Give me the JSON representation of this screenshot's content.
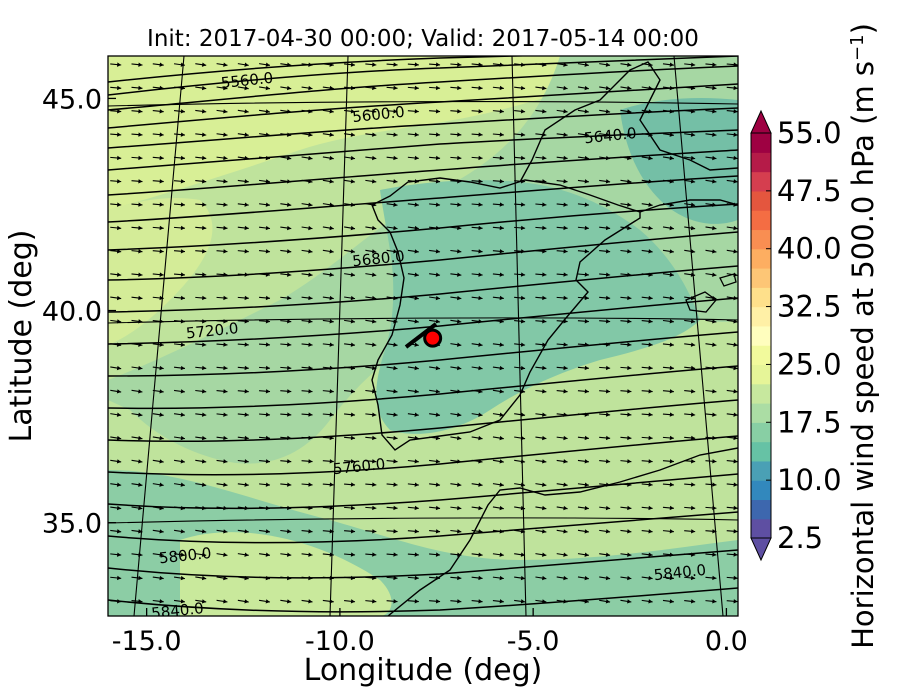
{
  "title": "Init: 2017-04-30 00:00; Valid: 2017-05-14 00:00",
  "x_axis": {
    "label": "Longitude (deg)",
    "range": [
      -16.0,
      0.3
    ],
    "ticks": [
      {
        "value": -15.0,
        "label": "-15.0"
      },
      {
        "value": -10.0,
        "label": "-10.0"
      },
      {
        "value": -5.0,
        "label": "-5.0"
      },
      {
        "value": 0.0,
        "label": "0.0"
      }
    ]
  },
  "y_axis": {
    "label": "Latitude (deg)",
    "range": [
      32.8,
      46.0
    ],
    "ticks": [
      {
        "value": 45.0,
        "label": "45.0"
      },
      {
        "value": 40.0,
        "label": "40.0"
      },
      {
        "value": 35.0,
        "label": "35.0"
      }
    ]
  },
  "colorbar": {
    "label": "Horizontal wind speed at 500.0 hPa (m s",
    "label_exponent": "−1",
    "label_suffix": ")",
    "min": 2.5,
    "max": 55.0,
    "step": 2.5,
    "extend": "both",
    "colors": [
      "#5e4fa2",
      "#3d67ae",
      "#3288bd",
      "#4aa0b5",
      "#66c2a5",
      "#88cfa4",
      "#abdda4",
      "#c7e89e",
      "#e6f598",
      "#f2fa9c",
      "#fffebe",
      "#fff0a6",
      "#fee08b",
      "#fdc676",
      "#fdae61",
      "#f98e52",
      "#f46d43",
      "#e4563e",
      "#d53e4f",
      "#b51b48",
      "#9e0142"
    ],
    "ticks": [
      {
        "value": 55.0,
        "label": "55.0"
      },
      {
        "value": 47.5,
        "label": "47.5"
      },
      {
        "value": 40.0,
        "label": "40.0"
      },
      {
        "value": 32.5,
        "label": "32.5"
      },
      {
        "value": 25.0,
        "label": "25.0"
      },
      {
        "value": 17.5,
        "label": "17.5"
      },
      {
        "value": 10.0,
        "label": "10.0"
      },
      {
        "value": 2.5,
        "label": "2.5"
      }
    ]
  },
  "contours": {
    "field": "geopotential height 500 hPa",
    "levels": [
      5560.0,
      5600.0,
      5640.0,
      5680.0,
      5720.0,
      5760.0,
      5800.0,
      5840.0
    ],
    "labels": [
      {
        "text": "5560.0",
        "lon": -12.4,
        "lat": 45.4
      },
      {
        "text": "5600.0",
        "lon": -9.0,
        "lat": 44.6
      },
      {
        "text": "5640.0",
        "lon": -3.0,
        "lat": 44.1
      },
      {
        "text": "5680.0",
        "lon": -9.0,
        "lat": 41.2
      },
      {
        "text": "5720.0",
        "lon": -13.3,
        "lat": 39.5
      },
      {
        "text": "5760.0",
        "lon": -9.5,
        "lat": 36.3
      },
      {
        "text": "5800.0",
        "lon": -14.0,
        "lat": 34.2
      },
      {
        "text": "5840.0",
        "lon": -14.2,
        "lat": 32.9
      },
      {
        "text": "5840.0",
        "lon": -1.2,
        "lat": 33.8
      }
    ]
  },
  "marker": {
    "lon": -7.6,
    "lat": 39.35,
    "color": "#ff0000"
  },
  "wind_vectors": {
    "direction": "westerly",
    "grid_step_deg": 0.55
  }
}
